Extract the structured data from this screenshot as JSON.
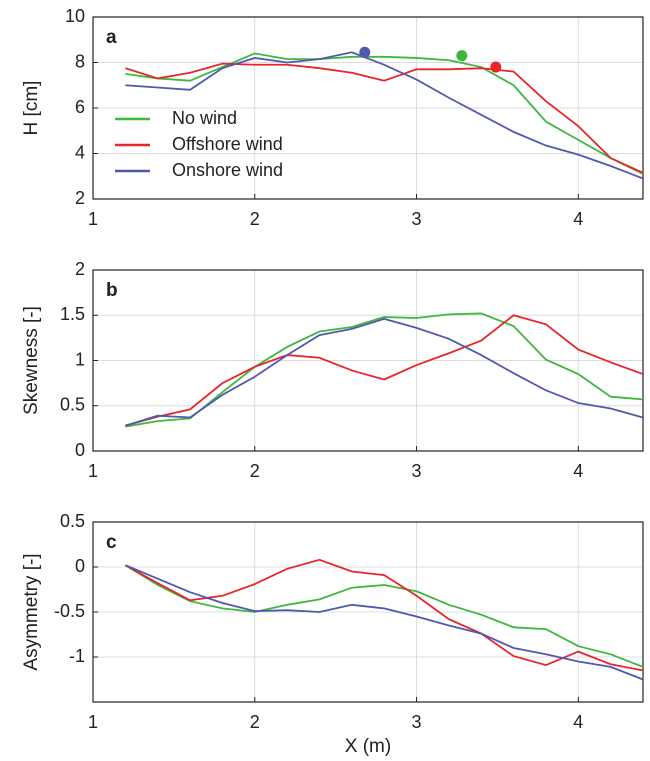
{
  "chart_data": [
    {
      "type": "line",
      "panel": "a",
      "ylabel": "H [cm]",
      "x": [
        1.2,
        1.4,
        1.6,
        1.8,
        2.0,
        2.2,
        2.4,
        2.6,
        2.8,
        3.0,
        3.2,
        3.4,
        3.6,
        3.8,
        4.0,
        4.2,
        4.4
      ],
      "xlim": [
        1,
        4.4
      ],
      "xticks": [
        1,
        2,
        3,
        4
      ],
      "ylim": [
        2,
        10
      ],
      "yticks": [
        2,
        4,
        6,
        8,
        10
      ],
      "grid": true,
      "legend": "lower left",
      "series": [
        {
          "name": "No wind",
          "color": "#3db83d",
          "values": [
            7.5,
            7.3,
            7.2,
            7.8,
            8.4,
            8.15,
            8.15,
            8.25,
            8.25,
            8.2,
            8.1,
            7.8,
            7.0,
            5.4,
            4.6,
            3.8,
            3.1
          ]
        },
        {
          "name": "Offshore wind",
          "color": "#e8242d",
          "values": [
            7.75,
            7.3,
            7.55,
            7.95,
            7.9,
            7.9,
            7.75,
            7.55,
            7.2,
            7.7,
            7.7,
            7.75,
            7.6,
            6.3,
            5.2,
            3.8,
            3.15
          ]
        },
        {
          "name": "Onshore wind",
          "color": "#5158b0",
          "values": [
            7.0,
            6.9,
            6.8,
            7.75,
            8.2,
            8.0,
            8.15,
            8.45,
            7.9,
            7.25,
            6.45,
            5.7,
            4.95,
            4.35,
            3.95,
            3.45,
            2.9
          ]
        }
      ],
      "points": [
        {
          "x": 2.68,
          "y": 8.45,
          "color": "#5158b0"
        },
        {
          "x": 3.28,
          "y": 8.3,
          "color": "#3db83d"
        },
        {
          "x": 3.49,
          "y": 7.8,
          "color": "#e8242d"
        }
      ]
    },
    {
      "type": "line",
      "panel": "b",
      "ylabel": "Skewness [-]",
      "x": [
        1.2,
        1.4,
        1.6,
        1.8,
        2.0,
        2.2,
        2.4,
        2.6,
        2.8,
        3.0,
        3.2,
        3.4,
        3.6,
        3.8,
        4.0,
        4.2,
        4.4
      ],
      "xlim": [
        1,
        4.4
      ],
      "xticks": [
        1,
        2,
        3,
        4
      ],
      "ylim": [
        0,
        2
      ],
      "yticks": [
        0,
        0.5,
        1,
        1.5,
        2
      ],
      "grid": true,
      "series": [
        {
          "color": "#3db83d",
          "values": [
            0.27,
            0.33,
            0.36,
            0.65,
            0.93,
            1.15,
            1.32,
            1.37,
            1.48,
            1.47,
            1.51,
            1.52,
            1.38,
            1.01,
            0.85,
            0.6,
            0.57
          ]
        },
        {
          "color": "#e8242d",
          "values": [
            0.28,
            0.38,
            0.46,
            0.75,
            0.93,
            1.06,
            1.03,
            0.89,
            0.79,
            0.95,
            1.08,
            1.22,
            1.5,
            1.4,
            1.12,
            0.98,
            0.85
          ]
        },
        {
          "color": "#5158b0",
          "values": [
            0.28,
            0.39,
            0.37,
            0.62,
            0.82,
            1.06,
            1.28,
            1.35,
            1.46,
            1.36,
            1.24,
            1.06,
            0.86,
            0.67,
            0.53,
            0.47,
            0.37
          ]
        }
      ]
    },
    {
      "type": "line",
      "panel": "c",
      "ylabel": "Asymmetry [-]",
      "xlabel": "X (m)",
      "x": [
        1.2,
        1.4,
        1.6,
        1.8,
        2.0,
        2.2,
        2.4,
        2.6,
        2.8,
        3.0,
        3.2,
        3.4,
        3.6,
        3.8,
        4.0,
        4.2,
        4.4
      ],
      "xlim": [
        1,
        4.4
      ],
      "xticks": [
        1,
        2,
        3,
        4
      ],
      "ylim": [
        -1.5,
        0.5
      ],
      "yticks": [
        -1,
        -0.5,
        0,
        0.5
      ],
      "grid": true,
      "series": [
        {
          "color": "#3db83d",
          "values": [
            0.02,
            -0.2,
            -0.38,
            -0.46,
            -0.5,
            -0.42,
            -0.36,
            -0.23,
            -0.2,
            -0.27,
            -0.42,
            -0.53,
            -0.67,
            -0.69,
            -0.88,
            -0.97,
            -1.11
          ]
        },
        {
          "color": "#e8242d",
          "values": [
            0.02,
            -0.18,
            -0.37,
            -0.32,
            -0.19,
            -0.02,
            0.08,
            -0.05,
            -0.09,
            -0.32,
            -0.58,
            -0.74,
            -0.99,
            -1.09,
            -0.94,
            -1.08,
            -1.15
          ]
        },
        {
          "color": "#5158b0",
          "values": [
            0.02,
            -0.13,
            -0.28,
            -0.4,
            -0.49,
            -0.48,
            -0.5,
            -0.42,
            -0.46,
            -0.55,
            -0.65,
            -0.74,
            -0.9,
            -0.97,
            -1.05,
            -1.11,
            -1.25
          ]
        }
      ]
    }
  ]
}
